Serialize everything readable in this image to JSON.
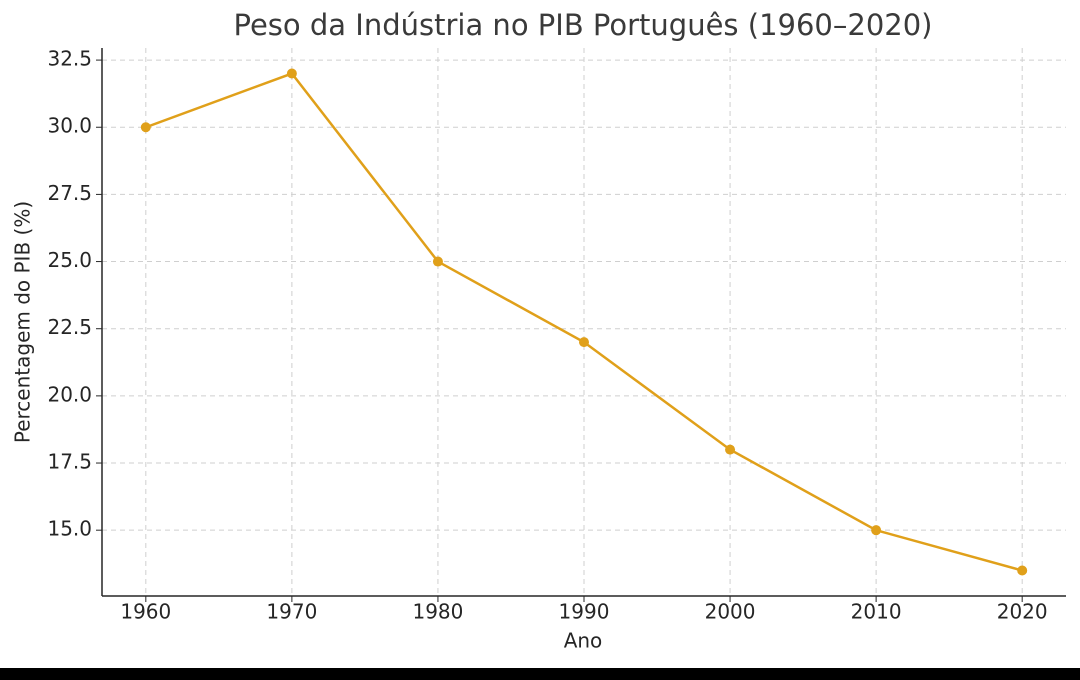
{
  "chart_data": {
    "type": "line",
    "title": "Peso da Indústria no PIB Português (1960–2020)",
    "xlabel": "Ano",
    "ylabel": "Percentagem do PIB (%)",
    "x": [
      1960,
      1970,
      1980,
      1990,
      2000,
      2010,
      2020
    ],
    "values": [
      30,
      32,
      25,
      22,
      18,
      15,
      13.5
    ],
    "color": "#e0a01a",
    "xlim": [
      1957,
      2023
    ],
    "ylim": [
      12.55,
      32.95
    ],
    "xticks": [
      1960,
      1970,
      1980,
      1990,
      2000,
      2010,
      2020
    ],
    "yticks": [
      {
        "value": 15,
        "label": "15.0"
      },
      17.5,
      {
        "value": 20,
        "label": "20.0"
      },
      22.5,
      {
        "value": 25,
        "label": "25.0"
      },
      27.5,
      {
        "value": 30,
        "label": "30.0"
      },
      32.5
    ],
    "grid": true
  }
}
